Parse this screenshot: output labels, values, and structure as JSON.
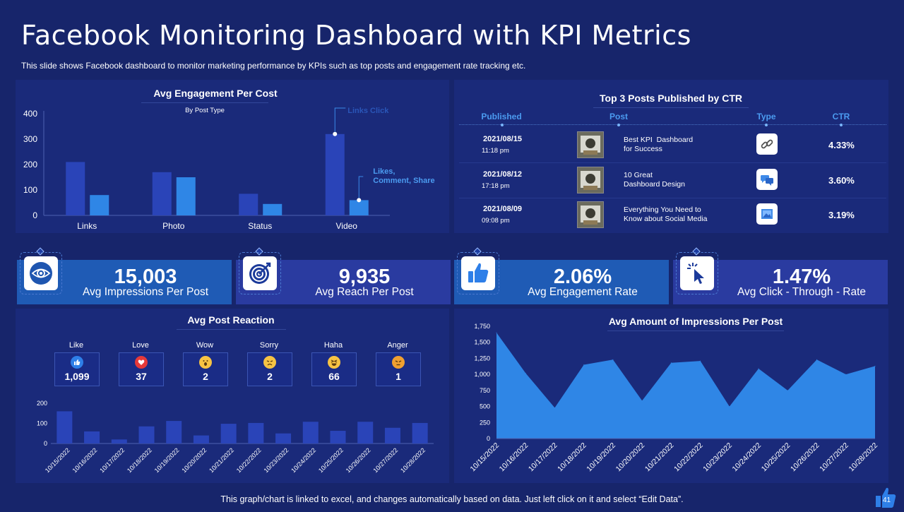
{
  "title": "Facebook Monitoring Dashboard with KPI Metrics",
  "subtitle": "This slide shows Facebook dashboard to monitor marketing performance by KPIs such as top posts and engagement rate tracking etc.",
  "footer": "This graph/chart is linked to excel, and changes automatically based on data. Just left click on it and select “Edit Data”.",
  "page_number": "41",
  "colors": {
    "background": "#17256b",
    "panel": "#1a2a7a",
    "bar_dark": "#2a44b8",
    "bar_light": "#2f86e6",
    "area": "#2f86e6",
    "accent": "#4b9bf0"
  },
  "engagement_panel": {
    "title": "Avg Engagement Per Cost",
    "subtitle": "By Post Type",
    "annotation_top": "Links Click",
    "annotation_side": "Likes, Comment, Share"
  },
  "top_posts": {
    "title": "Top 3 Posts  Published by CTR",
    "headers": [
      "Published",
      "Post",
      "Type",
      "CTR"
    ],
    "rows": [
      {
        "date": "2021/08/15",
        "time": "11:18 pm",
        "post": "Best KPI  Dashboard\nfor Success",
        "type": "link-icon",
        "ctr": "4.33%"
      },
      {
        "date": "2021/08/12",
        "time": "17:18 pm",
        "post": "10 Great\nDashboard Design",
        "type": "chat-icon",
        "ctr": "3.60%"
      },
      {
        "date": "2021/08/09",
        "time": "09:08 pm",
        "post": "Everything You Need to\nKnow about Social Media",
        "type": "image-icon",
        "ctr": "3.19%"
      }
    ]
  },
  "kpis": [
    {
      "value": "15,003",
      "label": "Avg Impressions Per Post",
      "icon": "eye-icon",
      "color": "#1f5bb5"
    },
    {
      "value": "9,935",
      "label": "Avg Reach Per Post",
      "icon": "target-icon",
      "color": "#2a3ba0"
    },
    {
      "value": "2.06%",
      "label": "Avg Engagement Rate",
      "icon": "thumbs-up-icon",
      "color": "#1f5bb5"
    },
    {
      "value": "1.47%",
      "label": "Avg Click - Through - Rate",
      "icon": "cursor-click-icon",
      "color": "#2a3ba0"
    }
  ],
  "reaction_panel": {
    "title": "Avg Post Reaction",
    "reactions": [
      {
        "label": "Like",
        "value": "1,099",
        "icon": "like-icon",
        "color": "#2e7fe8"
      },
      {
        "label": "Love",
        "value": "37",
        "icon": "love-icon",
        "color": "#e53939"
      },
      {
        "label": "Wow",
        "value": "2",
        "icon": "wow-icon",
        "color": "#f6c343"
      },
      {
        "label": "Sorry",
        "value": "2",
        "icon": "sorry-icon",
        "color": "#f6c343"
      },
      {
        "label": "Haha",
        "value": "66",
        "icon": "haha-icon",
        "color": "#f6c343"
      },
      {
        "label": "Anger",
        "value": "1",
        "icon": "anger-icon",
        "color": "#f0a030"
      }
    ]
  },
  "impressions_panel": {
    "title": "Avg Amount of Impressions  Per Post"
  },
  "chart_data": [
    {
      "type": "bar",
      "title": "Avg Engagement Per Cost",
      "subtitle": "By Post Type",
      "categories": [
        "Links",
        "Photo",
        "Status",
        "Video"
      ],
      "series": [
        {
          "name": "Links Click",
          "values": [
            210,
            170,
            85,
            320
          ]
        },
        {
          "name": "Likes, Comment, Share",
          "values": [
            80,
            150,
            45,
            60
          ]
        }
      ],
      "yticks": [
        0,
        100,
        200,
        300,
        400
      ],
      "ylim": [
        0,
        400
      ]
    },
    {
      "type": "bar",
      "title": "Avg Post Reaction",
      "categories": [
        "10/15/2022",
        "10/16/2022",
        "10/17/2022",
        "10/18/2022",
        "10/19/2022",
        "10/20/2022",
        "10/21/2022",
        "10/22/2022",
        "10/23/2022",
        "10/24/2022",
        "10/25/2022",
        "10/26/2022",
        "10/27/2022",
        "10/28/2022"
      ],
      "values": [
        160,
        60,
        20,
        85,
        112,
        40,
        98,
        102,
        50,
        108,
        63,
        108,
        78,
        102
      ],
      "yticks": [
        0,
        100,
        200
      ],
      "ylim": [
        0,
        200
      ]
    },
    {
      "type": "area",
      "title": "Avg Amount of Impressions  Per Post",
      "categories": [
        "10/15/2022",
        "10/16/2022",
        "10/17/2022",
        "10/18/2022",
        "10/19/2022",
        "10/20/2022",
        "10/21/2022",
        "10/22/2022",
        "10/23/2022",
        "10/24/2022",
        "10/25/2022",
        "10/26/2022",
        "10/27/2022",
        "10/28/2022"
      ],
      "values": [
        1650,
        1020,
        480,
        1150,
        1230,
        590,
        1180,
        1210,
        500,
        1090,
        750,
        1230,
        1000,
        1130
      ],
      "yticks": [
        "0",
        "250",
        "500",
        "750",
        "1,000",
        "1,250",
        "1,500",
        "1,750"
      ],
      "ylim": [
        0,
        1750
      ]
    }
  ]
}
